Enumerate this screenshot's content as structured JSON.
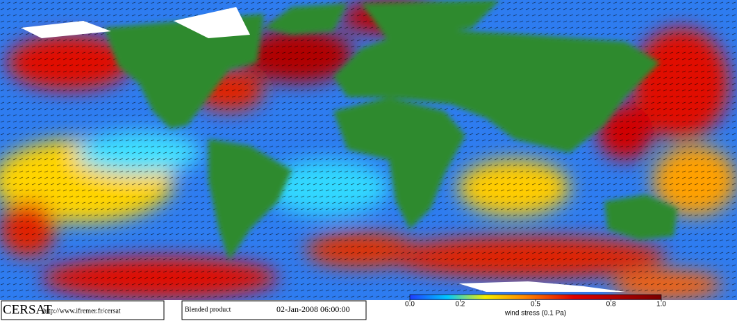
{
  "logo": "CERSAT",
  "url": "http://www.ifremer.fr/cersat",
  "product": "Blended product",
  "timestamp": "02-Jan-2008 06:00:00",
  "colorbar": {
    "label": "wind stress (0.1 Pa)",
    "lim": [
      0,
      1
    ],
    "ticks": [
      {
        "value": 0,
        "label": "0.0"
      },
      {
        "value": 0.2,
        "label": "0.2"
      },
      {
        "value": 0.5,
        "label": "0.5"
      },
      {
        "value": 0.8,
        "label": "0.8"
      },
      {
        "value": 1,
        "label": "1.0"
      }
    ]
  }
}
